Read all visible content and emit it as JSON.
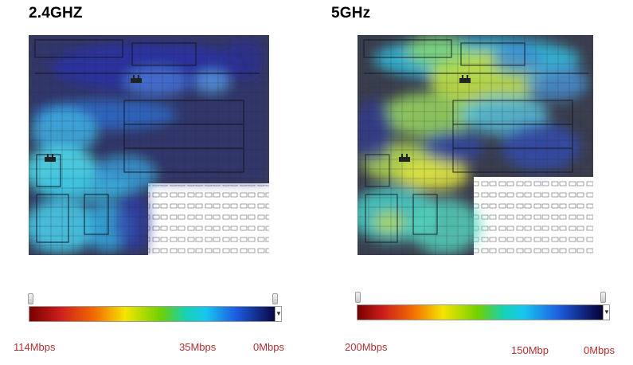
{
  "left": {
    "title": "2.4GHZ",
    "scale": {
      "min_label": "114Mbps",
      "mid_label": "35Mbps",
      "max_label": "0Mbps"
    }
  },
  "right": {
    "title": "5GHz",
    "scale": {
      "min_label": "200Mbps",
      "mid_label": "150Mbp",
      "max_label": "0Mbps"
    }
  }
}
